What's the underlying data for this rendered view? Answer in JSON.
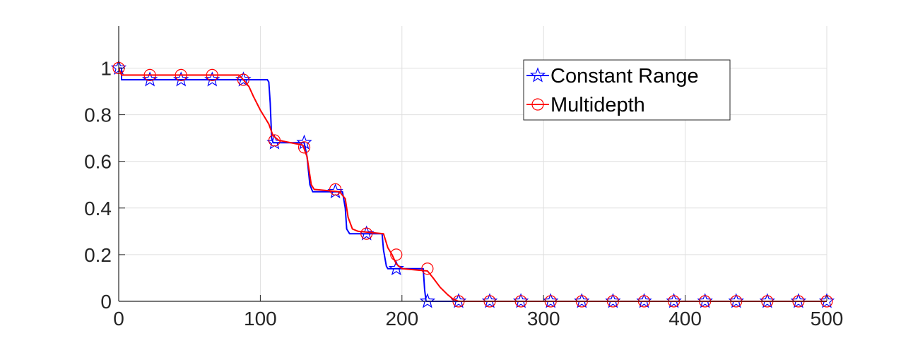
{
  "chart_data": {
    "type": "line",
    "title": "",
    "xlabel": "",
    "ylabel": "",
    "xlim": [
      0,
      500
    ],
    "ylim": [
      0,
      1.18
    ],
    "x_ticks": [
      "0",
      "100",
      "200",
      "300",
      "400",
      "500"
    ],
    "y_ticks": [
      "0",
      "0.2",
      "0.4",
      "0.6",
      "0.8",
      "1"
    ],
    "grid": true,
    "legend_position": "top-right-inside",
    "series": [
      {
        "name": "Constant Range",
        "color": "#0000ff",
        "marker": "star",
        "line": [
          [
            0,
            1
          ],
          [
            2,
            1
          ],
          [
            2,
            0.95
          ],
          [
            105,
            0.95
          ],
          [
            106,
            0.94
          ],
          [
            107,
            0.85
          ],
          [
            108,
            0.7
          ],
          [
            109,
            0.68
          ],
          [
            131,
            0.68
          ],
          [
            133,
            0.62
          ],
          [
            135,
            0.5
          ],
          [
            137,
            0.47
          ],
          [
            158,
            0.47
          ],
          [
            160,
            0.4
          ],
          [
            161,
            0.31
          ],
          [
            163,
            0.29
          ],
          [
            186,
            0.29
          ],
          [
            187,
            0.22
          ],
          [
            189,
            0.15
          ],
          [
            190,
            0.14
          ],
          [
            215,
            0.14
          ],
          [
            216,
            0.05
          ],
          [
            217,
            0
          ],
          [
            500,
            0
          ]
        ],
        "markers": [
          [
            0,
            1
          ],
          [
            22,
            0.95
          ],
          [
            44,
            0.95
          ],
          [
            66,
            0.95
          ],
          [
            88,
            0.95
          ],
          [
            110,
            0.68
          ],
          [
            131,
            0.68
          ],
          [
            153,
            0.47
          ],
          [
            175,
            0.29
          ],
          [
            196,
            0.14
          ],
          [
            218,
            0
          ],
          [
            240,
            0
          ],
          [
            262,
            0
          ],
          [
            284,
            0
          ],
          [
            305,
            0
          ],
          [
            327,
            0
          ],
          [
            349,
            0
          ],
          [
            371,
            0
          ],
          [
            392,
            0
          ],
          [
            414,
            0
          ],
          [
            436,
            0
          ],
          [
            458,
            0
          ],
          [
            480,
            0
          ],
          [
            500,
            0
          ]
        ]
      },
      {
        "name": "Multidepth",
        "color": "#ff0000",
        "marker": "circle",
        "line": [
          [
            0,
            1
          ],
          [
            2,
            0.97
          ],
          [
            85,
            0.97
          ],
          [
            88,
            0.95
          ],
          [
            92,
            0.92
          ],
          [
            95,
            0.88
          ],
          [
            100,
            0.82
          ],
          [
            103,
            0.79
          ],
          [
            106,
            0.76
          ],
          [
            109,
            0.71
          ],
          [
            113,
            0.69
          ],
          [
            130,
            0.67
          ],
          [
            133,
            0.62
          ],
          [
            136,
            0.5
          ],
          [
            138,
            0.48
          ],
          [
            156,
            0.47
          ],
          [
            160,
            0.44
          ],
          [
            162,
            0.36
          ],
          [
            165,
            0.31
          ],
          [
            169,
            0.3
          ],
          [
            187,
            0.29
          ],
          [
            190,
            0.23
          ],
          [
            193,
            0.2
          ],
          [
            196,
            0.16
          ],
          [
            200,
            0.14
          ],
          [
            218,
            0.13
          ],
          [
            222,
            0.1
          ],
          [
            227,
            0.06
          ],
          [
            232,
            0.03
          ],
          [
            236,
            0.01
          ],
          [
            240,
            0
          ],
          [
            500,
            0
          ]
        ],
        "markers": [
          [
            0,
            1
          ],
          [
            22,
            0.97
          ],
          [
            44,
            0.97
          ],
          [
            66,
            0.97
          ],
          [
            88,
            0.95
          ],
          [
            110,
            0.69
          ],
          [
            131,
            0.66
          ],
          [
            153,
            0.48
          ],
          [
            175,
            0.29
          ],
          [
            196,
            0.2
          ],
          [
            218,
            0.14
          ],
          [
            240,
            0
          ],
          [
            262,
            0
          ],
          [
            284,
            0
          ],
          [
            305,
            0
          ],
          [
            327,
            0
          ],
          [
            349,
            0
          ],
          [
            371,
            0
          ],
          [
            392,
            0
          ],
          [
            414,
            0
          ],
          [
            436,
            0
          ],
          [
            458,
            0
          ],
          [
            480,
            0
          ],
          [
            500,
            0
          ]
        ]
      }
    ]
  }
}
